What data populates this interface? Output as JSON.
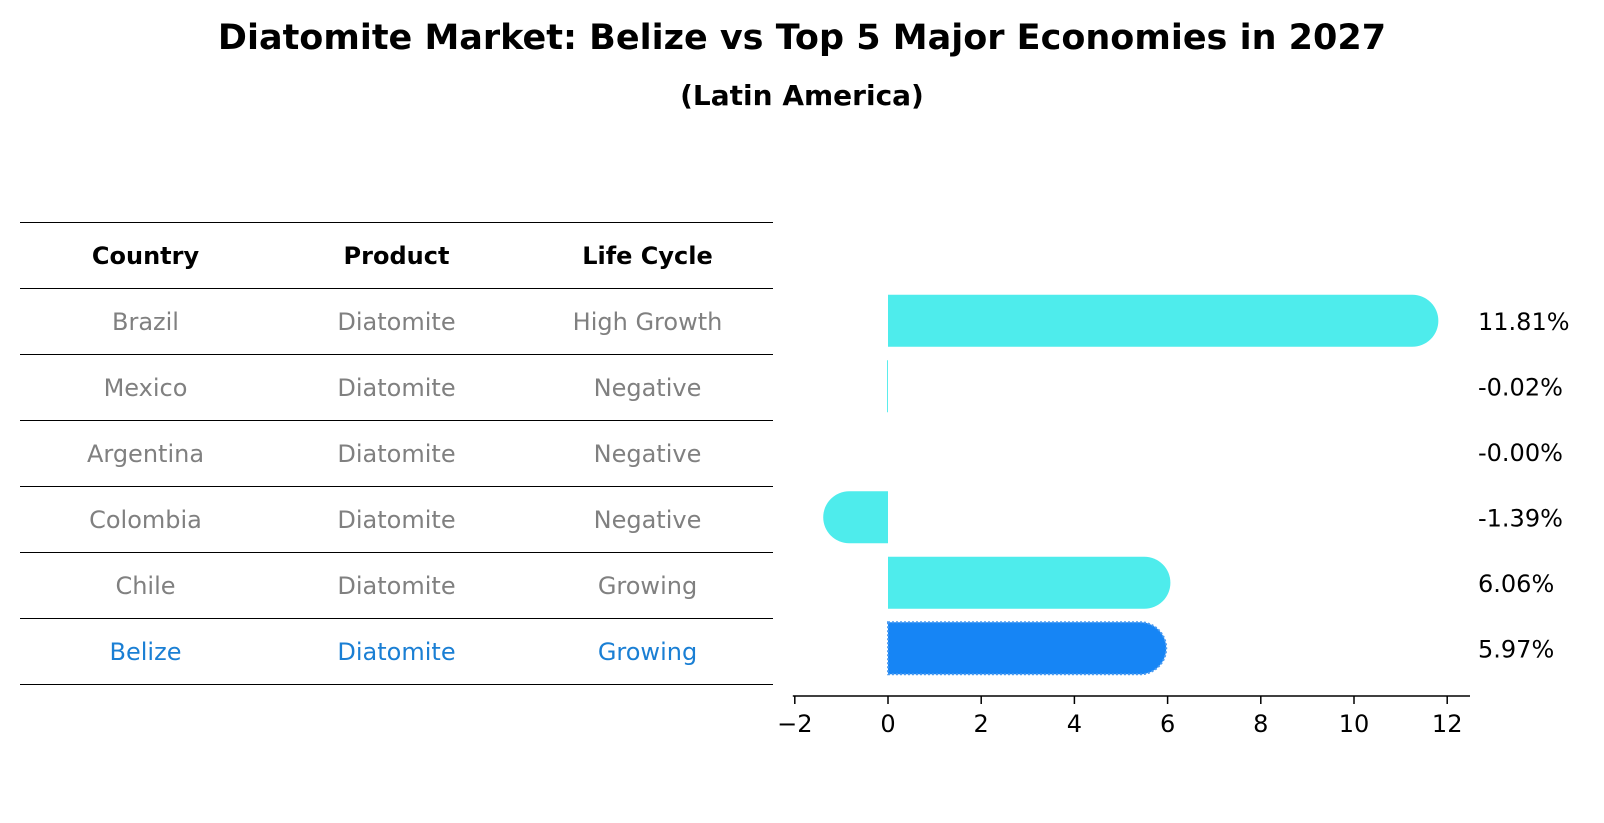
{
  "title": "Diatomite Market: Belize vs Top 5 Major Economies in 2027",
  "subtitle": "(Latin America)",
  "table": {
    "headers": [
      "Country",
      "Product",
      "Life Cycle"
    ],
    "rows": [
      {
        "country": "Brazil",
        "product": "Diatomite",
        "life_cycle": "High Growth",
        "highlight": false
      },
      {
        "country": "Mexico",
        "product": "Diatomite",
        "life_cycle": "Negative",
        "highlight": false
      },
      {
        "country": "Argentina",
        "product": "Diatomite",
        "life_cycle": "Negative",
        "highlight": false
      },
      {
        "country": "Colombia",
        "product": "Diatomite",
        "life_cycle": "Negative",
        "highlight": false
      },
      {
        "country": "Chile",
        "product": "Diatomite",
        "life_cycle": "Growing",
        "highlight": false
      },
      {
        "country": "Belize",
        "product": "Diatomite",
        "life_cycle": "Growing",
        "highlight": true
      }
    ]
  },
  "colors": {
    "bar": "#4eecec",
    "highlight_bar": "#1685f5",
    "highlight_text": "#1a7fd4",
    "row_text": "#808080"
  },
  "chart_data": {
    "type": "bar",
    "orientation": "horizontal",
    "categories": [
      "Brazil",
      "Mexico",
      "Argentina",
      "Colombia",
      "Chile",
      "Belize"
    ],
    "values": [
      11.81,
      -0.02,
      -0.0,
      -1.39,
      6.06,
      5.97
    ],
    "value_labels": [
      "11.81%",
      "-0.02%",
      "-0.00%",
      "-1.39%",
      "6.06%",
      "5.97%"
    ],
    "highlight": "Belize",
    "xlim": [
      -2,
      12.5
    ],
    "xticks": [
      -2,
      0,
      2,
      4,
      6,
      8,
      10,
      12
    ],
    "xtick_labels": [
      "−2",
      "0",
      "2",
      "4",
      "6",
      "8",
      "10",
      "12"
    ],
    "grid": false
  }
}
